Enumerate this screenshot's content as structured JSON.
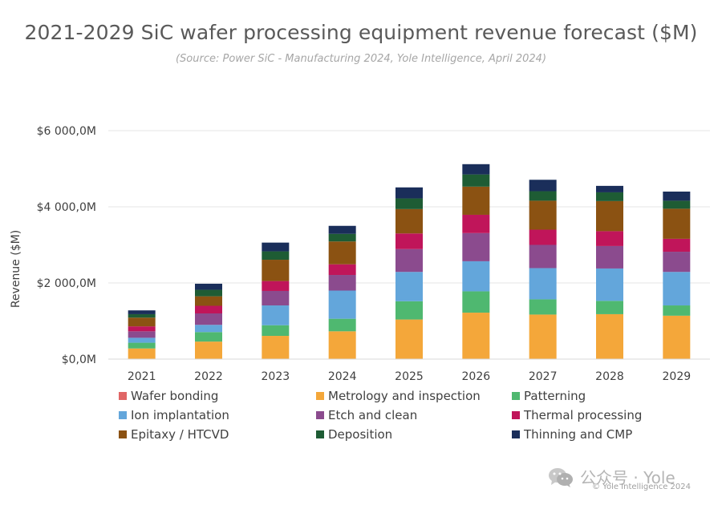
{
  "title": "2021-2029 SiC wafer processing equipment revenue forecast ($M)",
  "subtitle": "(Source: Power SiC - Manufacturing 2024, Yole Intelligence, April 2024)",
  "watermark": "公众号 · Yole",
  "copyright": "© Yole Intelligence 2024",
  "chart_data": {
    "type": "bar",
    "stacked": true,
    "title": "2021-2029 SiC wafer processing equipment revenue forecast ($M)",
    "subtitle": "(Source: Power SiC - Manufacturing 2024, Yole Intelligence, April 2024)",
    "xlabel": "",
    "ylabel": "Revenue ($M)",
    "ylim": [
      0,
      6000
    ],
    "yticks": [
      0,
      2000,
      4000,
      6000
    ],
    "ytick_labels": [
      "$0,0M",
      "$2 000,0M",
      "$4 000,0M",
      "$6 000,0M"
    ],
    "grid": true,
    "legend_position": "bottom",
    "categories": [
      "2021",
      "2022",
      "2023",
      "2024",
      "2025",
      "2026",
      "2027",
      "2028",
      "2029"
    ],
    "series": [
      {
        "name": "Wafer bonding",
        "color": "#e06666",
        "values": [
          10,
          10,
          10,
          10,
          10,
          10,
          10,
          10,
          10
        ]
      },
      {
        "name": "Metrology and inspection",
        "color": "#f4a73a",
        "values": [
          270,
          450,
          600,
          720,
          1030,
          1210,
          1160,
          1170,
          1130
        ]
      },
      {
        "name": "Patterning",
        "color": "#4fb870",
        "values": [
          150,
          250,
          280,
          330,
          480,
          560,
          400,
          350,
          270
        ]
      },
      {
        "name": "Ion implantation",
        "color": "#63a6db",
        "values": [
          130,
          190,
          520,
          740,
          770,
          790,
          820,
          850,
          880
        ]
      },
      {
        "name": "Etch and clean",
        "color": "#8b4b8e",
        "values": [
          170,
          300,
          380,
          410,
          600,
          740,
          610,
          590,
          530
        ]
      },
      {
        "name": "Thermal processing",
        "color": "#c0155a",
        "values": [
          130,
          200,
          260,
          280,
          410,
          480,
          400,
          390,
          340
        ]
      },
      {
        "name": "Epitaxy / HTCVD",
        "color": "#8b5212",
        "values": [
          230,
          250,
          560,
          600,
          640,
          740,
          760,
          790,
          790
        ]
      },
      {
        "name": "Deposition",
        "color": "#1e5c34",
        "values": [
          90,
          170,
          220,
          200,
          280,
          320,
          250,
          230,
          210
        ]
      },
      {
        "name": "Thinning and CMP",
        "color": "#1a2e5a",
        "values": [
          100,
          160,
          230,
          210,
          290,
          270,
          300,
          170,
          240
        ]
      }
    ]
  }
}
